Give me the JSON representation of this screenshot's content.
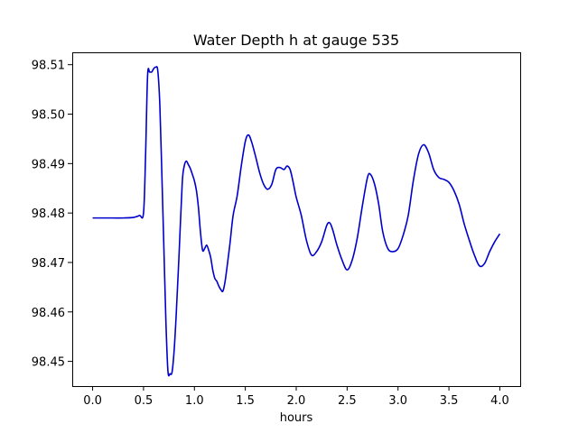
{
  "chart_data": {
    "type": "line",
    "title": "Water Depth h at gauge 535",
    "xlabel": "hours",
    "ylabel": "",
    "xlim": [
      -0.2,
      4.2
    ],
    "ylim": [
      98.445,
      98.5125
    ],
    "xticks": [
      "0.0",
      "0.5",
      "1.0",
      "1.5",
      "2.0",
      "2.5",
      "3.0",
      "3.5",
      "4.0"
    ],
    "xtick_values": [
      0.0,
      0.5,
      1.0,
      1.5,
      2.0,
      2.5,
      3.0,
      3.5,
      4.0
    ],
    "yticks": [
      "98.45",
      "98.46",
      "98.47",
      "98.48",
      "98.49",
      "98.50",
      "98.51"
    ],
    "ytick_values": [
      98.45,
      98.46,
      98.47,
      98.48,
      98.49,
      98.5,
      98.51
    ],
    "grid": false,
    "line_color": "#0000cc",
    "series": [
      {
        "x": [
          0.0,
          0.1,
          0.2,
          0.3,
          0.4,
          0.46,
          0.5,
          0.52,
          0.54,
          0.56,
          0.58,
          0.6,
          0.62,
          0.64,
          0.66,
          0.68,
          0.7,
          0.72,
          0.74,
          0.76,
          0.78,
          0.8,
          0.82,
          0.85,
          0.88,
          0.9,
          0.92,
          0.94,
          0.96,
          0.98,
          1.0,
          1.02,
          1.04,
          1.06,
          1.08,
          1.1,
          1.12,
          1.14,
          1.16,
          1.18,
          1.2,
          1.22,
          1.24,
          1.26,
          1.28,
          1.3,
          1.32,
          1.35,
          1.38,
          1.42,
          1.46,
          1.5,
          1.53,
          1.56,
          1.6,
          1.64,
          1.68,
          1.72,
          1.76,
          1.8,
          1.84,
          1.88,
          1.91,
          1.94,
          1.97,
          2.0,
          2.05,
          2.1,
          2.15,
          2.2,
          2.25,
          2.3,
          2.33,
          2.36,
          2.4,
          2.45,
          2.5,
          2.55,
          2.6,
          2.65,
          2.7,
          2.73,
          2.77,
          2.81,
          2.85,
          2.9,
          2.95,
          3.0,
          3.05,
          3.1,
          3.15,
          3.2,
          3.25,
          3.3,
          3.35,
          3.4,
          3.45,
          3.5,
          3.55,
          3.6,
          3.65,
          3.7,
          3.75,
          3.8,
          3.85,
          3.9,
          3.95,
          4.0
        ],
        "values": [
          98.479,
          98.479,
          98.479,
          98.479,
          98.4791,
          98.4795,
          98.48,
          98.4915,
          98.5078,
          98.5085,
          98.5085,
          98.5092,
          98.5095,
          98.5088,
          98.502,
          98.488,
          98.473,
          98.458,
          98.448,
          98.4475,
          98.4478,
          98.452,
          98.459,
          98.472,
          98.486,
          98.4895,
          98.4905,
          98.4898,
          98.489,
          98.4878,
          98.4865,
          98.4845,
          98.481,
          98.476,
          98.4725,
          98.4728,
          98.4735,
          98.4725,
          98.471,
          98.4685,
          98.4668,
          98.4662,
          98.4652,
          98.4645,
          98.4642,
          98.466,
          98.469,
          98.474,
          98.4795,
          98.4835,
          98.4895,
          98.4945,
          98.4958,
          98.4945,
          98.4915,
          98.4882,
          98.4858,
          98.4848,
          98.4858,
          98.4888,
          98.4892,
          98.4888,
          98.4895,
          98.4888,
          98.4862,
          98.4832,
          98.4795,
          98.4745,
          98.4715,
          98.4722,
          98.4742,
          98.4775,
          98.478,
          98.4765,
          98.4735,
          98.4705,
          98.4685,
          98.4705,
          98.475,
          98.4815,
          98.4872,
          98.4878,
          98.4858,
          98.4818,
          98.4762,
          98.4728,
          98.4722,
          98.4728,
          98.4755,
          98.4795,
          98.4865,
          98.4918,
          98.4938,
          98.4922,
          98.4888,
          98.4872,
          98.4868,
          98.4862,
          98.4845,
          98.4818,
          98.4778,
          98.4745,
          98.4715,
          98.4693,
          98.4698,
          98.4722,
          98.4742,
          98.4758
        ]
      }
    ]
  }
}
